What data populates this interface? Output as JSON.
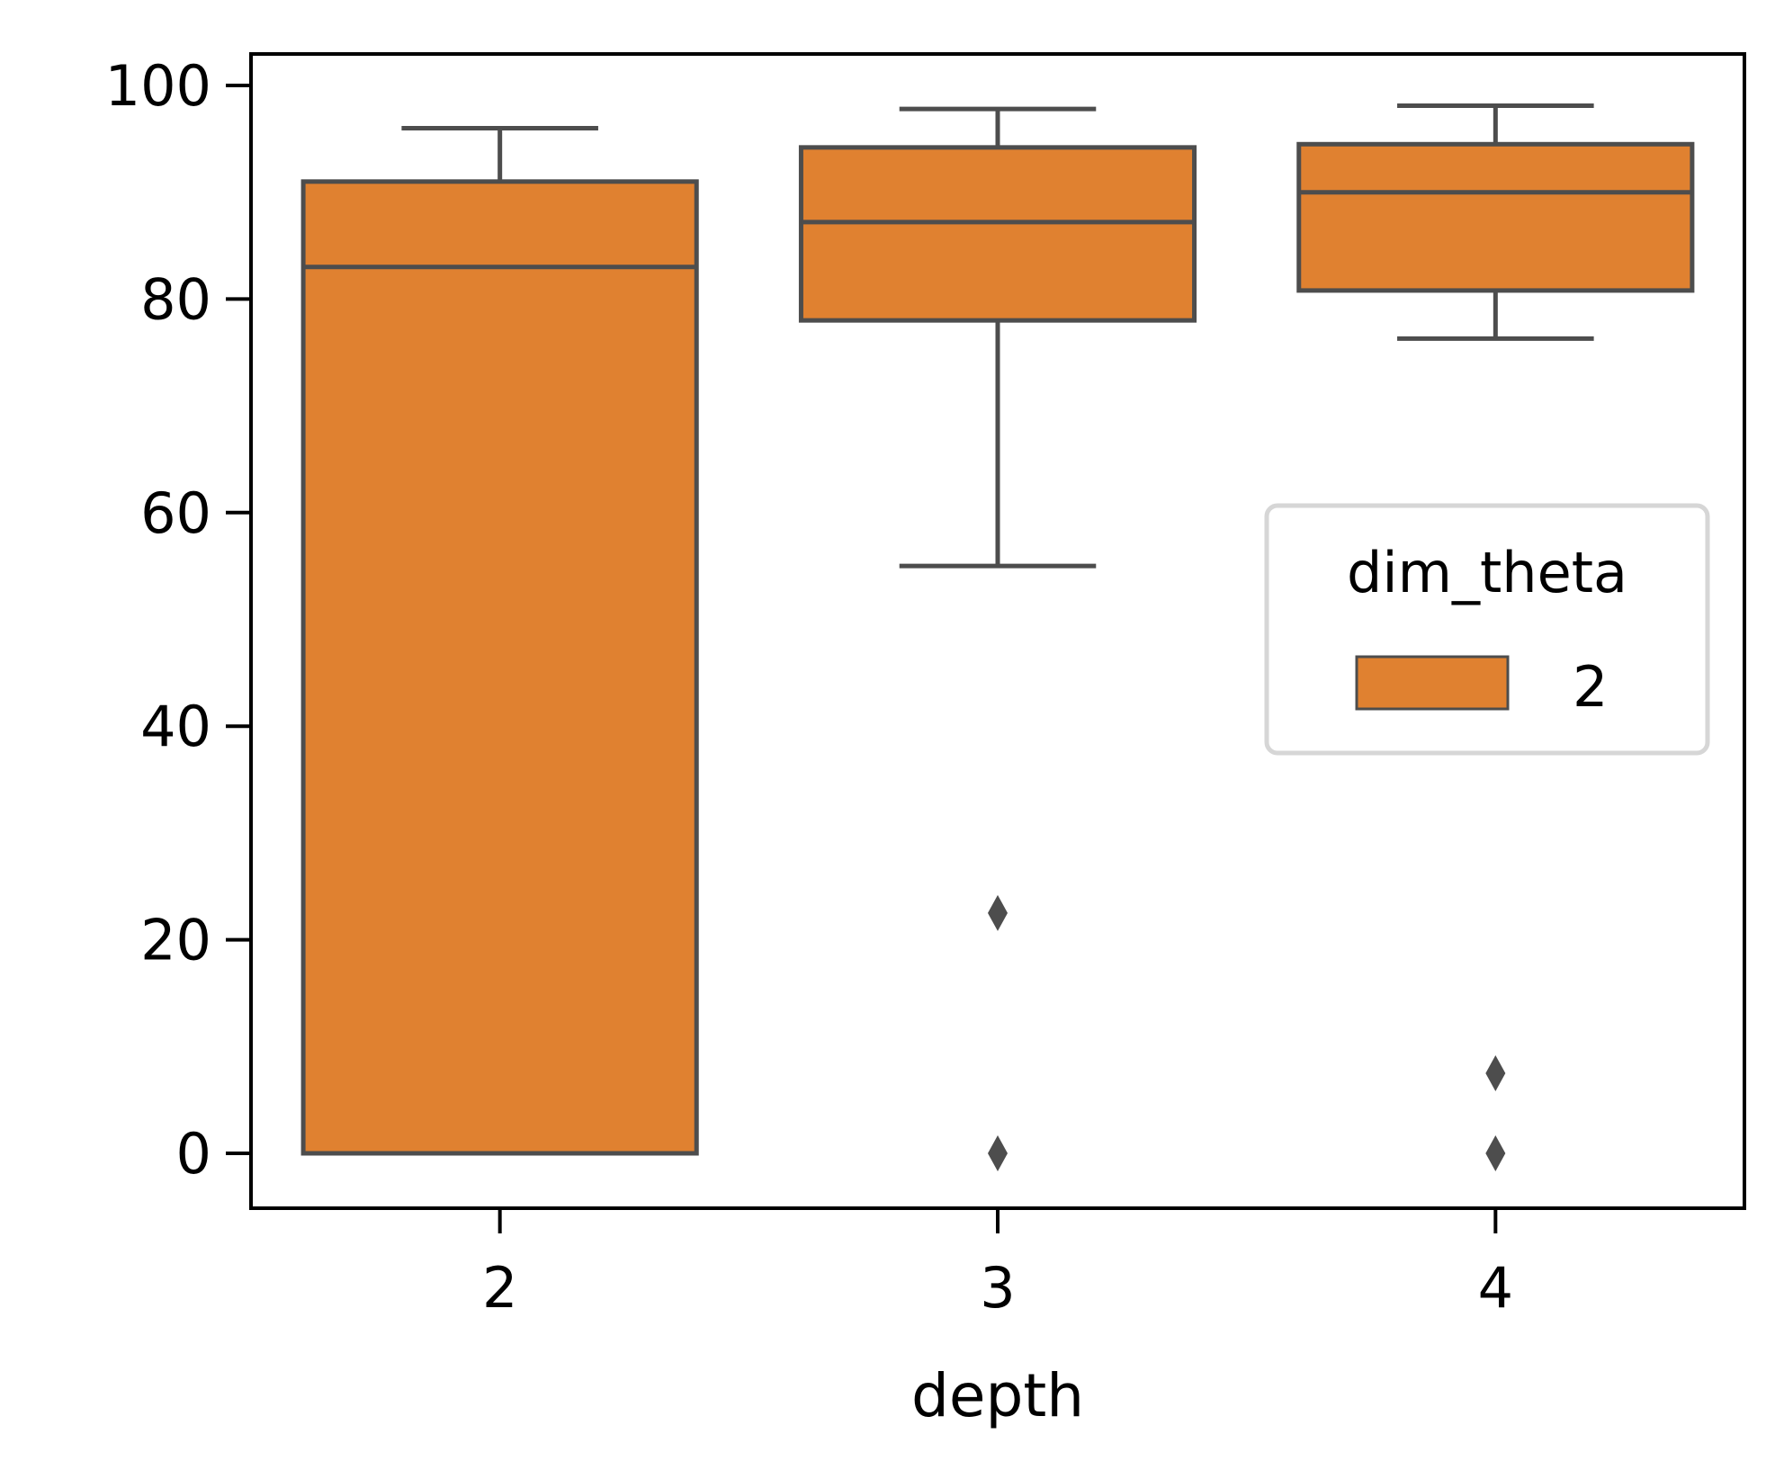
{
  "chart_data": {
    "type": "box",
    "xlabel": "depth",
    "ylabel": "",
    "ylim": [
      -5,
      103
    ],
    "yticks": [
      0,
      20,
      40,
      60,
      80,
      100
    ],
    "categories": [
      "2",
      "3",
      "4"
    ],
    "grid": false,
    "legend": {
      "title": "dim_theta",
      "entries": [
        "2"
      ],
      "placement": "center-right"
    },
    "series": [
      {
        "name": "2",
        "color": "#e08130",
        "boxes": [
          {
            "category": "2",
            "whislo": 0,
            "q1": 0,
            "median": 83,
            "q3": 91,
            "whishi": 96,
            "fliers": []
          },
          {
            "category": "3",
            "whislo": 55,
            "q1": 78,
            "median": 87.2,
            "q3": 94.2,
            "whishi": 97.8,
            "fliers": [
              22.5,
              0
            ]
          },
          {
            "category": "4",
            "whislo": 76.3,
            "q1": 80.8,
            "median": 90,
            "q3": 94.5,
            "whishi": 98.1,
            "fliers": [
              7.5,
              0
            ]
          }
        ]
      }
    ]
  }
}
